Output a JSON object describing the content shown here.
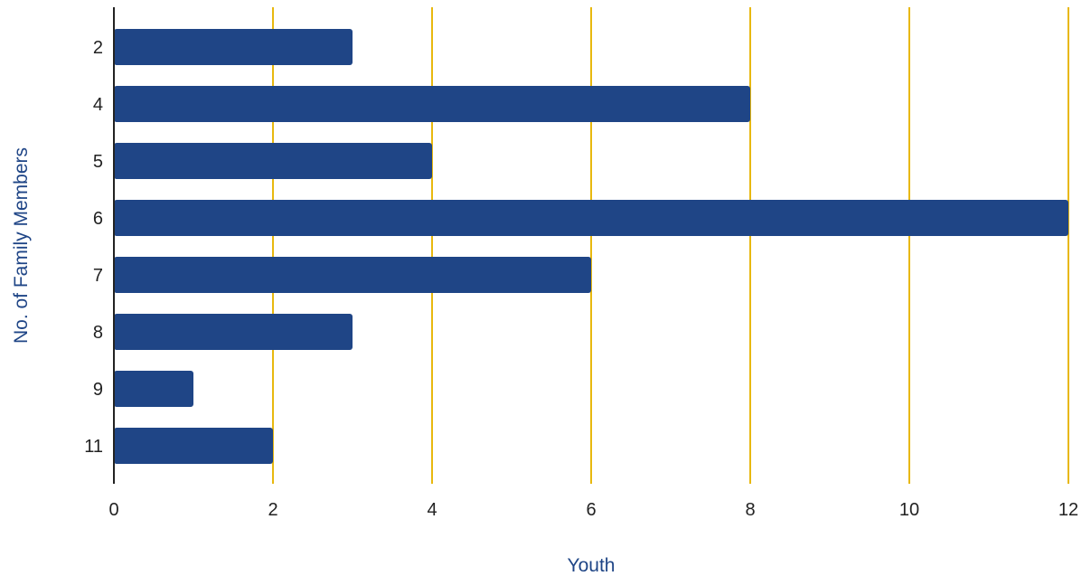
{
  "colors": {
    "bar": "#1F4586",
    "grid": "#E8B80F",
    "axis": "#222222",
    "axis_title": "#1F4586"
  },
  "chart_data": {
    "type": "bar",
    "orientation": "horizontal",
    "categories": [
      "2",
      "4",
      "5",
      "6",
      "7",
      "8",
      "9",
      "11"
    ],
    "values": [
      3,
      8,
      4,
      12,
      6,
      3,
      1,
      2
    ],
    "xlabel": "Youth",
    "ylabel": "No. of Family Members",
    "xlim": [
      0,
      12
    ],
    "xticks": [
      0,
      2,
      4,
      6,
      8,
      10,
      12
    ],
    "grid": "vertical"
  }
}
